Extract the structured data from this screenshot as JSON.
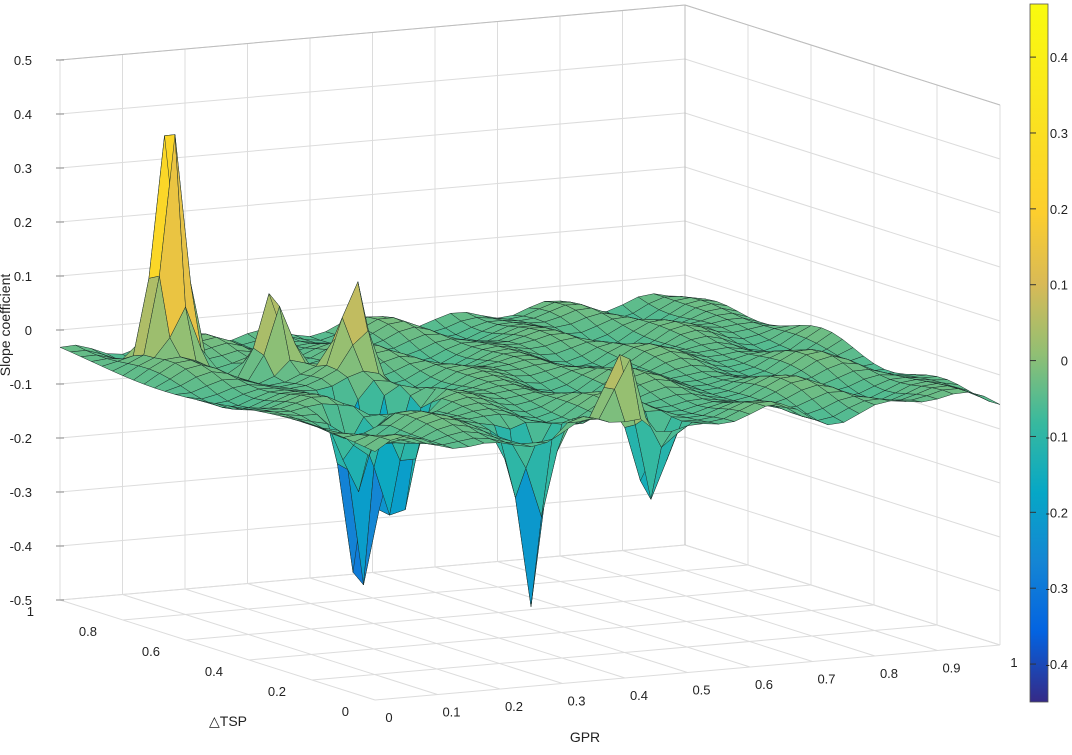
{
  "chart_data": {
    "type": "surface",
    "zlabel": "Slope coefficient",
    "xlabel": "GPR",
    "ylabel": "△TSP",
    "xlim": [
      0,
      1
    ],
    "ylim": [
      0,
      1
    ],
    "zlim": [
      -0.5,
      0.5
    ],
    "clim": [
      -0.45,
      0.47
    ],
    "colormap": "parula",
    "grid": true,
    "x_ticks": [
      "0",
      "0.1",
      "0.2",
      "0.3",
      "0.4",
      "0.5",
      "0.6",
      "0.7",
      "0.8",
      "0.9",
      "1"
    ],
    "y_ticks": [
      "0",
      "0.2",
      "0.4",
      "0.6",
      "0.8",
      "1"
    ],
    "z_ticks": [
      "-0.5",
      "-0.4",
      "-0.3",
      "-0.2",
      "-0.1",
      "0",
      "0.1",
      "0.2",
      "0.3",
      "0.4",
      "0.5"
    ],
    "colorbar_ticks": [
      "-0.4",
      "-0.3",
      "-0.2",
      "-0.1",
      "0",
      "0.1",
      "0.2",
      "0.3",
      "0.4"
    ],
    "base_level": -0.04,
    "features": [
      {
        "gpr": 0.1,
        "tsp": 0.85,
        "slope": 0.47
      },
      {
        "gpr": 0.2,
        "tsp": 0.72,
        "slope": 0.12
      },
      {
        "gpr": 0.27,
        "tsp": 0.6,
        "slope": 0.14
      },
      {
        "gpr": 0.62,
        "tsp": 0.55,
        "slope": -0.02
      },
      {
        "gpr": 0.42,
        "tsp": 0.05,
        "slope": 0.13
      },
      {
        "gpr": 0.2,
        "tsp": 0.45,
        "slope": -0.42
      },
      {
        "gpr": 0.24,
        "tsp": 0.4,
        "slope": -0.28
      },
      {
        "gpr": 0.12,
        "tsp": 0.3,
        "slope": -0.2
      },
      {
        "gpr": 0.3,
        "tsp": 0.1,
        "slope": -0.38
      },
      {
        "gpr": 0.48,
        "tsp": 0.08,
        "slope": -0.22
      }
    ]
  }
}
